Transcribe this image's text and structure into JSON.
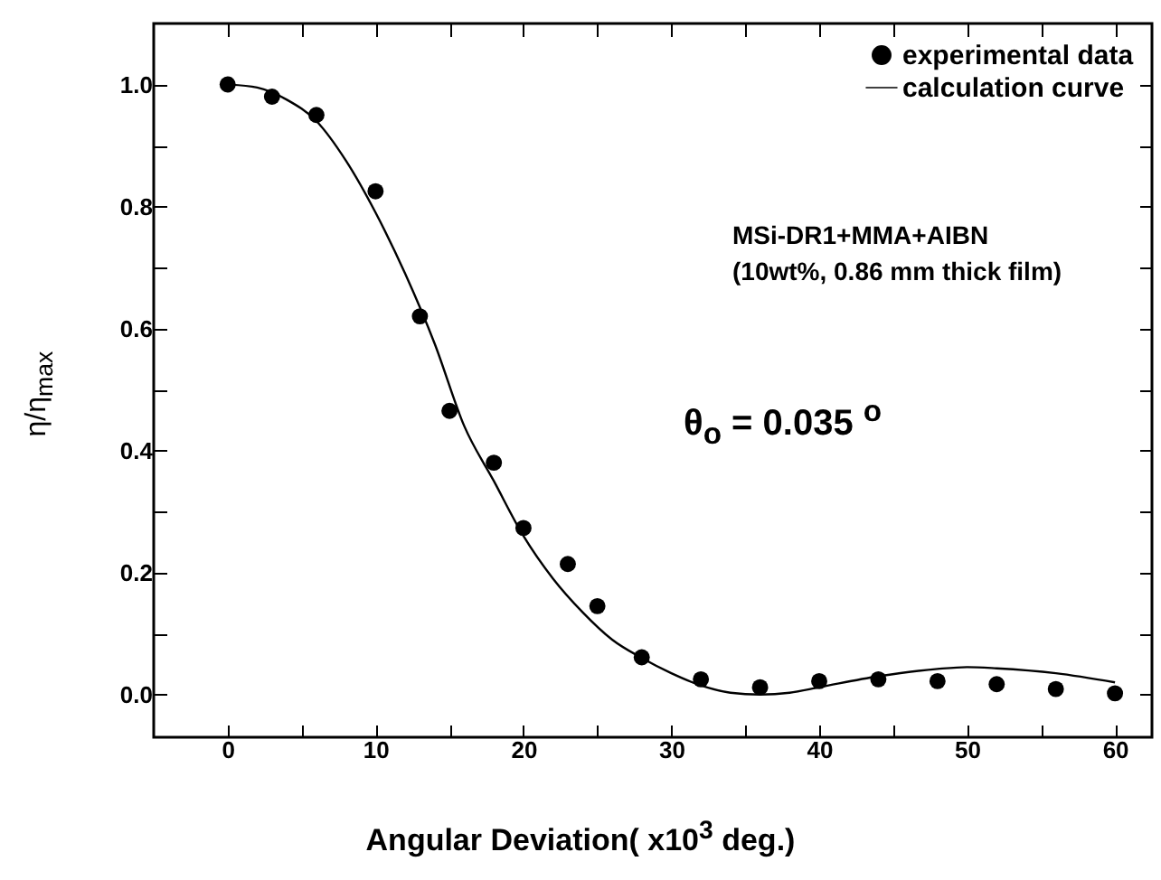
{
  "chart_data": {
    "type": "scatter",
    "xlabel": "Angular Deviation( x10$^{3}$ deg.)",
    "ylabel": "η/η$_{max}$",
    "annotations": [
      "MSi-DR1+MMA+AIBN",
      "(10wt%, 0.86 mm thick film)",
      "θ$_{o}$ = 0.035 $^{o}$"
    ],
    "series": [
      {
        "name": "experimental data",
        "color": "#000000",
        "marker": "circle",
        "x": [
          0,
          3,
          6,
          10,
          13,
          15,
          18,
          20,
          23,
          25,
          28,
          32,
          36,
          40,
          44,
          48,
          52,
          56,
          60
        ],
        "values": [
          1.0,
          0.98,
          0.95,
          0.825,
          0.62,
          0.465,
          0.38,
          0.273,
          0.214,
          0.145,
          0.061,
          0.025,
          0.012,
          0.022,
          0.025,
          0.022,
          0.017,
          0.009,
          0.002
        ]
      },
      {
        "name": "calculation curve",
        "type": "line",
        "color": "#000000",
        "line_style": "solid",
        "x": [
          0,
          2,
          4,
          6,
          8,
          10,
          12,
          14,
          16,
          18,
          20,
          22,
          24,
          26,
          28,
          30,
          32,
          34,
          36,
          38,
          40,
          44,
          48,
          50,
          52,
          56,
          60
        ],
        "values": [
          1.0,
          0.995,
          0.975,
          0.94,
          0.875,
          0.79,
          0.69,
          0.575,
          0.44,
          0.35,
          0.26,
          0.19,
          0.135,
          0.09,
          0.06,
          0.035,
          0.015,
          0.003,
          0.0,
          0.003,
          0.012,
          0.03,
          0.042,
          0.045,
          0.043,
          0.035,
          0.02
        ]
      }
    ],
    "xlim": [
      -5,
      62.5
    ],
    "ylim": [
      -0.07,
      1.1
    ],
    "xticks": [
      0,
      {
        "value": 5,
        "label": null
      },
      10,
      {
        "value": 15,
        "label": null
      },
      20,
      {
        "value": 25,
        "label": null
      },
      30,
      {
        "value": 35,
        "label": null
      },
      40,
      {
        "value": 45,
        "label": null
      },
      50,
      {
        "value": 55,
        "label": null
      },
      60
    ],
    "yticks": [
      {
        "value": 0,
        "label": "0.0"
      },
      {
        "value": 0.1,
        "label": null
      },
      {
        "value": 0.2,
        "label": "0.2"
      },
      {
        "value": 0.3,
        "label": null
      },
      {
        "value": 0.4,
        "label": "0.4"
      },
      {
        "value": 0.5,
        "label": null
      },
      {
        "value": 0.6,
        "label": "0.6"
      },
      {
        "value": 0.7,
        "label": null
      },
      {
        "value": 0.8,
        "label": "0.8"
      },
      {
        "value": 0.9,
        "label": null
      },
      {
        "value": 1.0,
        "label": "1.0"
      }
    ],
    "grid": false,
    "legend": "top right"
  }
}
